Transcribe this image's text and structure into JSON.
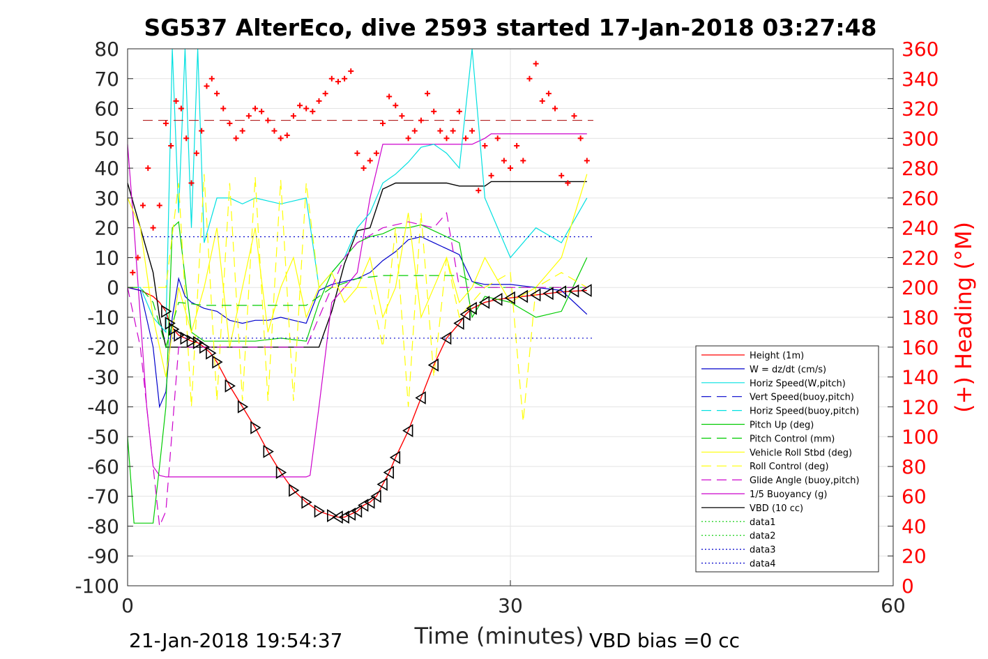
{
  "chart_data": {
    "type": "line",
    "title": "SG537 AlterEco, dive 2593 started 17-Jan-2018 03:27:48",
    "xlabel": "Time (minutes)",
    "ylabel": "",
    "ylabel_right": "(+) Heading (°M)",
    "xlim": [
      0,
      60
    ],
    "ylim": [
      -100,
      80
    ],
    "ylim_right": [
      0,
      360
    ],
    "x_ticks": [
      0,
      30,
      60
    ],
    "y_ticks": [
      80,
      70,
      60,
      50,
      40,
      30,
      20,
      10,
      0,
      -10,
      -20,
      -30,
      -40,
      -50,
      -60,
      -70,
      -80,
      -90,
      -100
    ],
    "y_ticks_right": [
      360,
      340,
      320,
      300,
      280,
      260,
      240,
      220,
      200,
      180,
      160,
      140,
      120,
      100,
      80,
      60,
      40,
      20,
      0
    ],
    "footer_left": "21-Jan-2018 19:54:37",
    "footer_right": "VBD bias =0 cc",
    "legend_position": "lower-right",
    "grid": true,
    "legend": [
      {
        "name": "Height (1m)",
        "color": "#ff0000",
        "style": "solid"
      },
      {
        "name": "W = dz/dt (cm/s)",
        "color": "#0000cc",
        "style": "solid"
      },
      {
        "name": "Horiz Speed(W,pitch)",
        "color": "#00e0e0",
        "style": "solid"
      },
      {
        "name": "Vert Speed(buoy,pitch)",
        "color": "#0000cc",
        "style": "dashed"
      },
      {
        "name": "Horiz Speed(buoy,pitch)",
        "color": "#00e0e0",
        "style": "dashed"
      },
      {
        "name": "Pitch Up (deg)",
        "color": "#00cc00",
        "style": "solid"
      },
      {
        "name": "Pitch Control (mm)",
        "color": "#00cc00",
        "style": "dashed"
      },
      {
        "name": "Vehicle Roll Stbd (deg)",
        "color": "#ffff00",
        "style": "solid"
      },
      {
        "name": "Roll Control (deg)",
        "color": "#ffff00",
        "style": "dashed"
      },
      {
        "name": "Glide Angle (buoy,pitch)",
        "color": "#cc00cc",
        "style": "dashed"
      },
      {
        "name": "1/5 Buoyancy (g)",
        "color": "#cc00cc",
        "style": "solid"
      },
      {
        "name": "VBD (10 cc)",
        "color": "#000000",
        "style": "solid"
      },
      {
        "name": "data1",
        "color": "#00cc00",
        "style": "dotted"
      },
      {
        "name": "data2",
        "color": "#00cc00",
        "style": "dotted"
      },
      {
        "name": "data3",
        "color": "#0000cc",
        "style": "dotted"
      },
      {
        "name": "data4",
        "color": "#0000cc",
        "style": "dotted"
      }
    ],
    "series": [
      {
        "name": "Height (1m)",
        "axis": "left",
        "color": "#ff0000",
        "x": [
          0,
          1,
          2,
          2.5,
          3,
          3.3,
          3.6,
          4,
          4.5,
          5,
          5.5,
          6,
          6.5,
          7,
          8,
          9,
          10,
          11,
          12,
          13,
          14,
          15,
          16,
          16.5,
          17,
          17.5,
          18,
          18.5,
          19,
          19.5,
          20,
          20.5,
          21,
          22,
          23,
          24,
          25,
          26,
          26.5,
          27,
          28,
          29,
          30,
          31,
          32,
          33,
          34,
          35,
          36
        ],
        "y": [
          0,
          -1,
          -3,
          -5,
          -8,
          -12,
          -14,
          -16,
          -17,
          -18,
          -18.5,
          -20,
          -22,
          -25,
          -33,
          -40,
          -47,
          -55,
          -62,
          -68,
          -72,
          -75,
          -76.5,
          -77,
          -77,
          -76,
          -75,
          -73,
          -72,
          -70,
          -66,
          -62,
          -57,
          -48,
          -37,
          -26,
          -17,
          -12,
          -9,
          -7,
          -5,
          -4,
          -3.5,
          -3,
          -2.5,
          -2,
          -1.5,
          -1.2,
          -1
        ]
      },
      {
        "name": "VBD (10 cc)",
        "axis": "left",
        "color": "#000000",
        "x": [
          0,
          1,
          2,
          2.5,
          3,
          4,
          6,
          8,
          10,
          12,
          14,
          15,
          16,
          17,
          18,
          19,
          20,
          21,
          22,
          23,
          24,
          25,
          26,
          27,
          28,
          28.5,
          30,
          32,
          34,
          36
        ],
        "y": [
          35,
          20,
          5,
          -10,
          -20,
          -20,
          -20,
          -20,
          -20,
          -20,
          -20,
          -20,
          -8,
          8,
          19,
          20,
          33,
          35,
          35,
          35,
          35,
          35,
          34,
          34,
          34,
          35.5,
          35.5,
          35.5,
          35.5,
          35.5
        ]
      },
      {
        "name": "1/5 Buoyancy (g)",
        "axis": "left",
        "color": "#cc00cc",
        "x": [
          0,
          0.5,
          1,
          1.5,
          2,
          2.5,
          3,
          4,
          6,
          8,
          10,
          12,
          14,
          14.3,
          15,
          16,
          17,
          18,
          19,
          20,
          21,
          22,
          24,
          26,
          27,
          28,
          28.5,
          30,
          32,
          34,
          36
        ],
        "y": [
          48,
          20,
          -10,
          -40,
          -60,
          -63,
          -63.5,
          -63.5,
          -63.5,
          -63.5,
          -63.5,
          -63.5,
          -63.5,
          -63,
          -40,
          -5,
          0,
          5,
          30,
          48,
          48,
          48,
          48,
          48,
          48,
          50,
          51.5,
          51.5,
          51.5,
          51.5,
          51.5
        ]
      },
      {
        "name": "W = dz/dt (cm/s)",
        "axis": "left",
        "color": "#0000cc",
        "x": [
          0,
          1,
          2,
          2.5,
          3,
          3.5,
          4,
          4.5,
          5,
          6,
          7,
          8,
          9,
          10,
          11,
          12,
          13,
          14,
          15,
          16,
          17,
          18,
          19,
          20,
          21,
          22,
          23,
          24,
          25,
          26,
          27,
          28,
          30,
          32,
          34,
          36
        ],
        "y": [
          0,
          -1,
          -20,
          -40,
          -35,
          -10,
          3,
          -3,
          -5,
          -7,
          -8,
          -11,
          -12,
          -11,
          -11,
          -10,
          -11,
          -12,
          -1,
          1,
          2,
          3,
          5,
          9,
          12,
          16,
          17,
          15,
          13,
          11,
          2,
          1,
          1,
          0,
          -1,
          -9
        ]
      },
      {
        "name": "Horiz Speed(W,pitch)",
        "axis": "left",
        "color": "#00e0e0",
        "x": [
          0,
          1,
          2,
          3,
          3.5,
          4,
          4.5,
          5,
          5.5,
          6,
          7,
          8,
          9,
          10,
          11,
          12,
          13,
          14,
          15,
          16,
          17,
          18,
          19,
          20,
          21,
          22,
          23,
          24,
          25,
          26,
          27,
          28,
          30,
          32,
          34,
          36
        ],
        "y": [
          0,
          0,
          -10,
          -15,
          80,
          25,
          80,
          20,
          80,
          15,
          30,
          30,
          28,
          30,
          29,
          28,
          29,
          30,
          0,
          5,
          10,
          20,
          25,
          35,
          38,
          42,
          47,
          48,
          45,
          40,
          80,
          30,
          10,
          20,
          15,
          30
        ]
      },
      {
        "name": "Pitch Up (deg)",
        "axis": "left",
        "color": "#00cc00",
        "x": [
          0,
          0.5,
          1,
          2,
          2.5,
          3,
          3.5,
          4,
          5,
          6,
          8,
          10,
          12,
          14,
          15,
          16,
          17,
          18,
          19,
          20,
          21,
          22,
          23,
          24,
          25,
          26,
          27,
          28,
          30,
          32,
          34,
          36
        ],
        "y": [
          -50,
          -79,
          -79,
          -79,
          -60,
          -40,
          20,
          22,
          -15,
          -18,
          -18,
          -18,
          -17,
          -18,
          -5,
          5,
          10,
          15,
          17,
          18,
          20,
          20,
          21,
          19,
          17,
          15,
          -10,
          -3,
          -5,
          -10,
          -8,
          10
        ]
      },
      {
        "name": "Vehicle Roll Stbd (deg)",
        "axis": "left",
        "color": "#ffff00",
        "x": [
          0,
          1,
          2,
          3,
          4,
          5,
          6,
          7,
          8,
          9,
          10,
          11,
          12,
          13,
          14,
          15,
          16,
          17,
          18,
          19,
          20,
          21,
          22,
          23,
          24,
          25,
          26,
          27,
          28,
          30,
          32,
          34,
          36
        ],
        "y": [
          30,
          20,
          -10,
          -30,
          0,
          -15,
          0,
          20,
          -20,
          0,
          20,
          -15,
          0,
          10,
          -10,
          0,
          5,
          -5,
          0,
          10,
          -10,
          0,
          25,
          -10,
          0,
          10,
          -5,
          0,
          10,
          -5,
          0,
          10,
          38
        ]
      },
      {
        "name": "Roll Control (deg)",
        "axis": "left",
        "color": "#ffff00",
        "x": [
          0,
          2,
          3,
          4,
          5,
          6,
          7,
          8,
          9,
          10,
          11,
          12,
          13,
          14,
          15,
          16,
          17,
          18,
          19,
          20,
          21,
          22,
          23,
          24,
          25,
          26,
          28,
          30,
          31,
          32,
          34,
          36
        ],
        "y": [
          0,
          0,
          0,
          35,
          -40,
          38,
          -38,
          35,
          -38,
          37,
          -38,
          36,
          -38,
          35,
          0,
          0,
          0,
          0,
          0,
          -20,
          20,
          -40,
          25,
          -30,
          10,
          -10,
          0,
          5,
          -45,
          0,
          5,
          0
        ]
      },
      {
        "name": "Pitch Control (mm)",
        "axis": "left",
        "color": "#00cc00",
        "x": [
          0,
          1,
          2,
          3,
          4,
          6,
          8,
          10,
          12,
          14,
          15,
          16,
          18,
          20,
          22,
          24,
          26,
          28,
          30,
          32,
          34,
          36
        ],
        "y": [
          0,
          0,
          -5,
          -20,
          -5,
          -6,
          -6,
          -6,
          -6,
          -6,
          -3,
          0,
          3,
          4,
          4,
          4,
          4,
          0,
          0,
          0,
          0,
          0
        ]
      },
      {
        "name": "Glide Angle (buoy,pitch)",
        "axis": "left",
        "color": "#cc00cc",
        "x": [
          0,
          1,
          2,
          2.5,
          3,
          4,
          6,
          8,
          10,
          12,
          14,
          15,
          16,
          17,
          18,
          20,
          22,
          24,
          25,
          26,
          28,
          30,
          32,
          34,
          36
        ],
        "y": [
          0,
          -20,
          -60,
          -80,
          -75,
          -20,
          -20,
          -20,
          -20,
          -20,
          -20,
          -10,
          0,
          10,
          15,
          20,
          22,
          20,
          25,
          0,
          0,
          0,
          0,
          0,
          0
        ]
      },
      {
        "name": "Heading",
        "axis": "right",
        "color": "#ff0000",
        "x": [
          0.4,
          0.8,
          1.2,
          1.6,
          2.0,
          2.5,
          3.0,
          3.4,
          3.8,
          4.2,
          4.6,
          5.0,
          5.4,
          5.8,
          6.2,
          6.6,
          7.0,
          7.5,
          8.0,
          8.5,
          9.0,
          9.5,
          10.0,
          10.5,
          11.0,
          11.5,
          12.0,
          12.5,
          13.0,
          13.5,
          14.0,
          14.5,
          15.0,
          15.5,
          16.0,
          16.5,
          17.0,
          17.5,
          18.0,
          18.5,
          19.0,
          19.5,
          20.0,
          20.5,
          21.0,
          21.5,
          22.0,
          22.5,
          23.0,
          23.5,
          24.0,
          24.5,
          25.0,
          25.5,
          26.0,
          26.5,
          27.0,
          27.5,
          28.0,
          28.5,
          29.0,
          29.5,
          30.0,
          30.5,
          31.0,
          31.5,
          32.0,
          32.5,
          33.0,
          33.5,
          34.0,
          34.5,
          35.0,
          35.5,
          36.0
        ],
        "y": [
          210,
          220,
          255,
          280,
          240,
          255,
          310,
          295,
          325,
          320,
          300,
          270,
          290,
          305,
          335,
          340,
          330,
          320,
          310,
          300,
          305,
          315,
          320,
          318,
          312,
          305,
          300,
          302,
          315,
          322,
          320,
          318,
          325,
          330,
          340,
          338,
          340,
          345,
          290,
          280,
          285,
          290,
          310,
          328,
          322,
          315,
          300,
          305,
          312,
          330,
          318,
          305,
          300,
          305,
          318,
          300,
          305,
          265,
          295,
          275,
          300,
          285,
          280,
          295,
          285,
          340,
          350,
          325,
          330,
          320,
          275,
          270,
          315,
          300,
          285
        ]
      }
    ]
  }
}
